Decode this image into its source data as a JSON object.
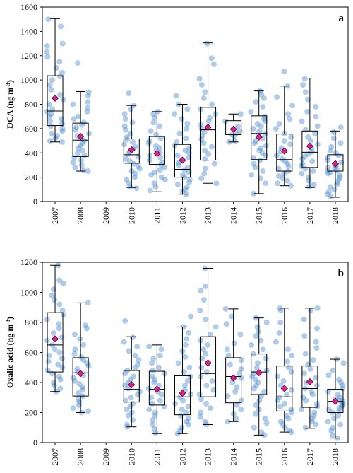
{
  "chart_data": [
    {
      "type": "box",
      "panel_label": "a",
      "ylabel_main": "DCA (ng m",
      "ylabel_sup": "-3",
      "ylabel_end": ")",
      "ylim": [
        0,
        1600
      ],
      "yticks": [
        0,
        200,
        400,
        600,
        800,
        1000,
        1200,
        1400,
        1600
      ],
      "categories": [
        "2007",
        "2008",
        "2009",
        "2010",
        "2011",
        "2012",
        "2013",
        "2014",
        "2015",
        "2016",
        "2017",
        "2018"
      ],
      "boxes": [
        {
          "year": "2007",
          "min": 490,
          "q1": 625,
          "median": 745,
          "q3": 1035,
          "max": 1505,
          "mean": 850,
          "points": [
            1500,
            1440,
            1300,
            1280,
            1230,
            1190,
            1150,
            1100,
            1060,
            1030,
            1000,
            960,
            920,
            880,
            840,
            800,
            760,
            740,
            720,
            700,
            680,
            660,
            640,
            620,
            600,
            580,
            560,
            540,
            520,
            500,
            490
          ]
        },
        {
          "year": "2008",
          "min": 250,
          "q1": 370,
          "median": 505,
          "q3": 645,
          "max": 905,
          "mean": 535,
          "points": [
            1140,
            900,
            870,
            820,
            800,
            770,
            740,
            700,
            680,
            650,
            630,
            610,
            590,
            560,
            540,
            520,
            500,
            480,
            460,
            440,
            420,
            400,
            380,
            360,
            340,
            320,
            300,
            280,
            260,
            250
          ]
        },
        {
          "year": "2009",
          "points": []
        },
        {
          "year": "2010",
          "min": 115,
          "q1": 315,
          "median": 385,
          "q3": 515,
          "max": 790,
          "mean": 425,
          "points": [
            890,
            790,
            760,
            720,
            680,
            650,
            620,
            590,
            560,
            530,
            510,
            490,
            470,
            450,
            430,
            410,
            390,
            370,
            350,
            330,
            310,
            290,
            270,
            250,
            230,
            200,
            180,
            150,
            120,
            110
          ]
        },
        {
          "year": "2011",
          "min": 80,
          "q1": 305,
          "median": 375,
          "q3": 535,
          "max": 740,
          "mean": 395,
          "points": [
            740,
            720,
            690,
            650,
            620,
            580,
            550,
            520,
            500,
            480,
            460,
            440,
            420,
            400,
            380,
            360,
            340,
            320,
            300,
            280,
            260,
            240,
            220,
            200,
            180,
            150,
            120,
            90
          ]
        },
        {
          "year": "2012",
          "min": 60,
          "q1": 200,
          "median": 265,
          "q3": 470,
          "max": 800,
          "mean": 340,
          "points": [
            870,
            800,
            760,
            720,
            680,
            640,
            600,
            560,
            520,
            490,
            460,
            440,
            420,
            400,
            380,
            360,
            340,
            320,
            300,
            280,
            260,
            240,
            220,
            200,
            180,
            160,
            140,
            120,
            100,
            80,
            60
          ]
        },
        {
          "year": "2013",
          "min": 150,
          "q1": 340,
          "median": 590,
          "q3": 775,
          "max": 1305,
          "mean": 610,
          "points": [
            1300,
            1180,
            1130,
            1010,
            960,
            900,
            850,
            800,
            760,
            720,
            690,
            660,
            630,
            600,
            570,
            540,
            510,
            480,
            450,
            420,
            390,
            350,
            310,
            270,
            230,
            190,
            150
          ]
        },
        {
          "year": "2014",
          "min": 490,
          "q1": 550,
          "median": 555,
          "q3": 665,
          "max": 720,
          "mean": 595,
          "points": [
            720,
            660,
            620,
            580,
            560,
            550,
            540,
            500,
            490
          ]
        },
        {
          "year": "2015",
          "min": 65,
          "q1": 345,
          "median": 560,
          "q3": 705,
          "max": 910,
          "mean": 530,
          "points": [
            910,
            880,
            850,
            820,
            780,
            740,
            700,
            680,
            660,
            640,
            620,
            600,
            580,
            560,
            540,
            520,
            500,
            480,
            460,
            440,
            420,
            400,
            380,
            360,
            340,
            310,
            280,
            250,
            220,
            190,
            150,
            65
          ]
        },
        {
          "year": "2016",
          "min": 130,
          "q1": 250,
          "median": 345,
          "q3": 555,
          "max": 950,
          "mean": 415,
          "points": [
            1070,
            950,
            860,
            790,
            720,
            680,
            640,
            600,
            560,
            530,
            500,
            470,
            440,
            410,
            380,
            350,
            330,
            310,
            290,
            270,
            250,
            230,
            210,
            190,
            170,
            150,
            130
          ]
        },
        {
          "year": "2017",
          "min": 115,
          "q1": 280,
          "median": 405,
          "q3": 580,
          "max": 1015,
          "mean": 455,
          "points": [
            1010,
            960,
            900,
            840,
            780,
            740,
            700,
            660,
            620,
            590,
            560,
            530,
            500,
            470,
            440,
            410,
            390,
            370,
            350,
            330,
            310,
            290,
            270,
            250,
            230,
            200,
            170,
            140,
            120
          ]
        },
        {
          "year": "2018",
          "min": 35,
          "q1": 250,
          "median": 300,
          "q3": 385,
          "max": 580,
          "mean": 310,
          "points": [
            610,
            570,
            520,
            480,
            450,
            420,
            400,
            380,
            360,
            340,
            320,
            300,
            290,
            280,
            270,
            260,
            250,
            240,
            230,
            220,
            200,
            180,
            160,
            140,
            120,
            100,
            80,
            60,
            40
          ]
        }
      ]
    },
    {
      "type": "box",
      "panel_label": "b",
      "ylabel_main": "Oxalic acid (ng m",
      "ylabel_sup": "-3",
      "ylabel_end": ")",
      "ylim": [
        0,
        1200
      ],
      "yticks": [
        0,
        200,
        400,
        600,
        800,
        1000,
        1200
      ],
      "categories": [
        "2007",
        "2008",
        "2009",
        "2010",
        "2011",
        "2012",
        "2013",
        "2014",
        "2015",
        "2016",
        "2017",
        "2018"
      ],
      "boxes": [
        {
          "year": "2007",
          "min": 340,
          "q1": 470,
          "median": 650,
          "q3": 865,
          "max": 1180,
          "mean": 690,
          "points": [
            1180,
            1080,
            1060,
            1020,
            980,
            950,
            920,
            880,
            850,
            820,
            790,
            760,
            730,
            700,
            680,
            650,
            620,
            600,
            580,
            560,
            540,
            520,
            500,
            480,
            460,
            440,
            420,
            400,
            380,
            360,
            340
          ]
        },
        {
          "year": "2008",
          "min": 200,
          "q1": 310,
          "median": 465,
          "q3": 565,
          "max": 930,
          "mean": 460,
          "points": [
            930,
            780,
            760,
            720,
            690,
            650,
            620,
            590,
            570,
            550,
            530,
            510,
            490,
            470,
            450,
            430,
            410,
            390,
            370,
            350,
            330,
            310,
            290,
            270,
            250,
            230,
            210,
            200
          ]
        },
        {
          "year": "2009",
          "points": []
        },
        {
          "year": "2010",
          "min": 105,
          "q1": 270,
          "median": 355,
          "q3": 480,
          "max": 705,
          "mean": 385,
          "points": [
            810,
            700,
            670,
            640,
            610,
            580,
            550,
            520,
            500,
            480,
            460,
            440,
            420,
            400,
            380,
            360,
            340,
            320,
            300,
            280,
            260,
            240,
            220,
            200,
            180,
            150,
            120,
            105
          ]
        },
        {
          "year": "2011",
          "min": 60,
          "q1": 250,
          "median": 355,
          "q3": 475,
          "max": 650,
          "mean": 355,
          "points": [
            640,
            620,
            580,
            560,
            530,
            500,
            480,
            460,
            440,
            420,
            400,
            380,
            360,
            340,
            320,
            300,
            280,
            260,
            240,
            220,
            200,
            180,
            150,
            120,
            90,
            65
          ]
        },
        {
          "year": "2012",
          "min": 60,
          "q1": 185,
          "median": 305,
          "q3": 445,
          "max": 770,
          "mean": 330,
          "points": [
            840,
            770,
            730,
            690,
            650,
            610,
            570,
            530,
            500,
            470,
            440,
            410,
            380,
            350,
            320,
            300,
            280,
            260,
            240,
            220,
            200,
            180,
            160,
            140,
            120,
            100,
            80,
            60
          ]
        },
        {
          "year": "2013",
          "min": 120,
          "q1": 305,
          "median": 460,
          "q3": 705,
          "max": 1160,
          "mean": 530,
          "points": [
            1160,
            1040,
            1010,
            950,
            880,
            820,
            770,
            720,
            680,
            650,
            620,
            590,
            560,
            530,
            500,
            470,
            440,
            410,
            380,
            350,
            320,
            290,
            260,
            230,
            200,
            170,
            140,
            120
          ]
        },
        {
          "year": "2014",
          "min": 140,
          "q1": 265,
          "median": 440,
          "q3": 565,
          "max": 890,
          "mean": 430,
          "points": [
            890,
            840,
            790,
            720,
            660,
            620,
            580,
            550,
            520,
            490,
            460,
            430,
            400,
            370,
            340,
            310,
            280,
            250,
            220,
            190,
            160,
            140
          ]
        },
        {
          "year": "2015",
          "min": 50,
          "q1": 320,
          "median": 470,
          "q3": 590,
          "max": 830,
          "mean": 465,
          "points": [
            830,
            800,
            770,
            740,
            710,
            680,
            650,
            620,
            590,
            560,
            530,
            500,
            480,
            460,
            440,
            420,
            400,
            380,
            360,
            340,
            310,
            280,
            250,
            220,
            190,
            160,
            130,
            100,
            70,
            50
          ]
        },
        {
          "year": "2016",
          "min": 70,
          "q1": 210,
          "median": 305,
          "q3": 510,
          "max": 895,
          "mean": 360,
          "points": [
            895,
            880,
            800,
            730,
            670,
            620,
            580,
            540,
            500,
            470,
            440,
            410,
            380,
            350,
            320,
            300,
            280,
            260,
            240,
            220,
            200,
            180,
            160,
            140,
            120,
            100,
            80,
            70
          ]
        },
        {
          "year": "2017",
          "min": 95,
          "q1": 235,
          "median": 360,
          "q3": 510,
          "max": 895,
          "mean": 405,
          "points": [
            895,
            880,
            820,
            760,
            710,
            670,
            630,
            590,
            550,
            520,
            490,
            460,
            430,
            400,
            380,
            360,
            340,
            320,
            300,
            280,
            260,
            240,
            220,
            200,
            180,
            160,
            140,
            120,
            100
          ]
        },
        {
          "year": "2018",
          "min": 30,
          "q1": 200,
          "median": 275,
          "q3": 355,
          "max": 555,
          "mean": 275,
          "points": [
            555,
            530,
            480,
            450,
            420,
            400,
            380,
            360,
            340,
            320,
            300,
            290,
            280,
            270,
            260,
            250,
            240,
            230,
            220,
            210,
            200,
            180,
            160,
            140,
            120,
            100,
            80,
            50,
            30
          ]
        }
      ]
    }
  ]
}
